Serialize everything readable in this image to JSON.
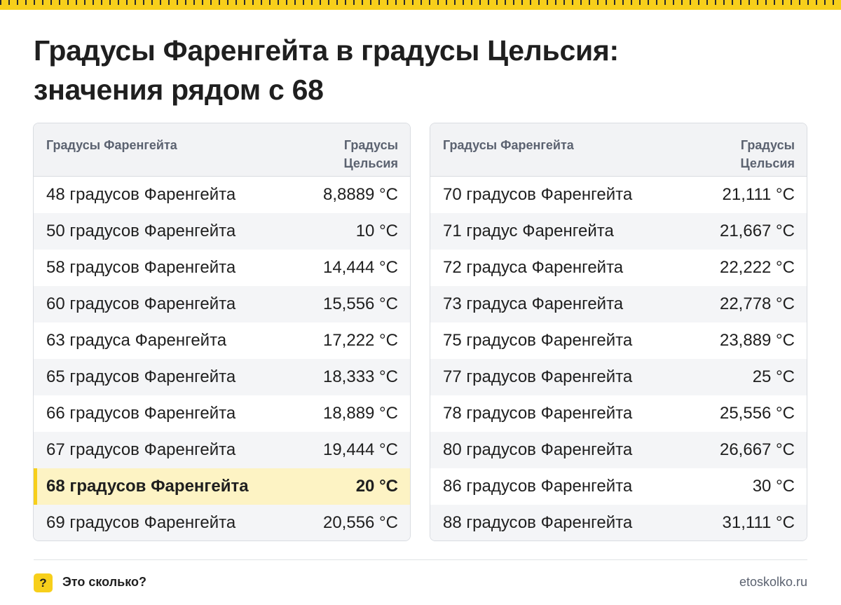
{
  "title_line1": "Градусы Фаренгейта в градусы Цельсия:",
  "title_line2": "значения рядом с 68",
  "accent_color": "#f7cf1b",
  "header": {
    "col1": "Градусы Фаренгейта",
    "col2_line1": "Градусы",
    "col2_line2": "Цельсия"
  },
  "left_rows": [
    {
      "f": "48 градусов Фаренгейта",
      "c": "8,8889 °C"
    },
    {
      "f": "50 градусов Фаренгейта",
      "c": "10 °C"
    },
    {
      "f": "58 градусов Фаренгейта",
      "c": "14,444 °C"
    },
    {
      "f": "60 градусов Фаренгейта",
      "c": "15,556 °C"
    },
    {
      "f": "63 градуса Фаренгейта",
      "c": "17,222 °C"
    },
    {
      "f": "65 градусов Фаренгейта",
      "c": "18,333 °C"
    },
    {
      "f": "66 градусов Фаренгейта",
      "c": "18,889 °C"
    },
    {
      "f": "67 градусов Фаренгейта",
      "c": "19,444 °C"
    },
    {
      "f": "68 градусов Фаренгейта",
      "c": "20 °C"
    },
    {
      "f": "69 градусов Фаренгейта",
      "c": "20,556 °C"
    }
  ],
  "right_rows": [
    {
      "f": "70 градусов Фаренгейта",
      "c": "21,111 °C"
    },
    {
      "f": "71 градус Фаренгейта",
      "c": "21,667 °C"
    },
    {
      "f": "72 градуса Фаренгейта",
      "c": "22,222 °C"
    },
    {
      "f": "73 градуса Фаренгейта",
      "c": "22,778 °C"
    },
    {
      "f": "75 градусов Фаренгейта",
      "c": "23,889 °C"
    },
    {
      "f": "77 градусов Фаренгейта",
      "c": "25 °C"
    },
    {
      "f": "78 градусов Фаренгейта",
      "c": "25,556 °C"
    },
    {
      "f": "80 градусов Фаренгейта",
      "c": "26,667 °C"
    },
    {
      "f": "86 градусов Фаренгейта",
      "c": "30 °C"
    },
    {
      "f": "88 градусов Фаренгейта",
      "c": "31,111 °C"
    }
  ],
  "footer": {
    "icon": "question-icon",
    "icon_glyph": "?",
    "brand": "Это сколько?",
    "site": "etoskolko.ru"
  }
}
